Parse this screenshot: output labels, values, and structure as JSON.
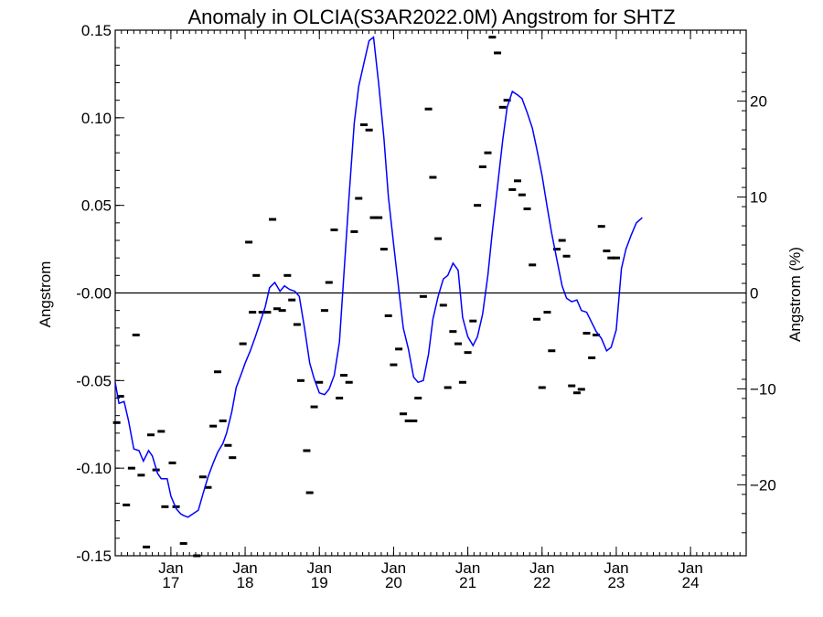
{
  "chart_data": {
    "type": "line",
    "title": "Anomaly in OLCIA(S3AR2022.0M) Angstrom for SHTZ",
    "ylabel": "Angstrom",
    "y2label": "Angstrom (%)",
    "xlabel": "",
    "xlim": [
      2016.25,
      2024.75
    ],
    "ylim": [
      -0.15,
      0.15
    ],
    "y2lim": [
      -27.4,
      27.4
    ],
    "yticks": [
      {
        "value": 0.15,
        "label": "0.15"
      },
      {
        "value": 0.1,
        "label": "0.10"
      },
      {
        "value": 0.05,
        "label": "0.05"
      },
      {
        "value": 0.0,
        "label": "-0.00"
      },
      {
        "value": -0.05,
        "label": "-0.05"
      },
      {
        "value": -0.1,
        "label": "-0.10"
      },
      {
        "value": -0.15,
        "label": "-0.15"
      }
    ],
    "y2ticks": [
      {
        "value": 20,
        "label": "20"
      },
      {
        "value": 10,
        "label": "10"
      },
      {
        "value": 0,
        "label": "0"
      },
      {
        "value": -10,
        "label": "−10"
      },
      {
        "value": -20,
        "label": "−20"
      }
    ],
    "xticks": [
      {
        "value": 2017,
        "month": "Jan",
        "year": "17"
      },
      {
        "value": 2018,
        "month": "Jan",
        "year": "18"
      },
      {
        "value": 2019,
        "month": "Jan",
        "year": "19"
      },
      {
        "value": 2020,
        "month": "Jan",
        "year": "20"
      },
      {
        "value": 2021,
        "month": "Jan",
        "year": "21"
      },
      {
        "value": 2022,
        "month": "Jan",
        "year": "22"
      },
      {
        "value": 2023,
        "month": "Jan",
        "year": "23"
      },
      {
        "value": 2024,
        "month": "Jan",
        "year": "24"
      }
    ],
    "zero_line": 0.0,
    "grid": false,
    "colors": {
      "smoothed": "#0000ff",
      "monthly": "#000000",
      "axes": "#000000"
    },
    "series": [
      {
        "style": "line",
        "points": [
          [
            2016.25,
            -0.051
          ],
          [
            2016.3,
            -0.063
          ],
          [
            2016.37,
            -0.062
          ],
          [
            2016.43,
            -0.073
          ],
          [
            2016.5,
            -0.089
          ],
          [
            2016.57,
            -0.09
          ],
          [
            2016.63,
            -0.096
          ],
          [
            2016.7,
            -0.09
          ],
          [
            2016.75,
            -0.093
          ],
          [
            2016.82,
            -0.103
          ],
          [
            2016.87,
            -0.106
          ],
          [
            2016.95,
            -0.106
          ],
          [
            2017.0,
            -0.116
          ],
          [
            2017.07,
            -0.123
          ],
          [
            2017.13,
            -0.126
          ],
          [
            2017.17,
            -0.127
          ],
          [
            2017.23,
            -0.128
          ],
          [
            2017.3,
            -0.126
          ],
          [
            2017.37,
            -0.124
          ],
          [
            2017.43,
            -0.115
          ],
          [
            2017.5,
            -0.105
          ],
          [
            2017.57,
            -0.097
          ],
          [
            2017.63,
            -0.091
          ],
          [
            2017.7,
            -0.086
          ],
          [
            2017.75,
            -0.08
          ],
          [
            2017.82,
            -0.068
          ],
          [
            2017.88,
            -0.054
          ],
          [
            2017.95,
            -0.046
          ],
          [
            2018.0,
            -0.04
          ],
          [
            2018.07,
            -0.033
          ],
          [
            2018.13,
            -0.026
          ],
          [
            2018.2,
            -0.017
          ],
          [
            2018.27,
            -0.008
          ],
          [
            2018.33,
            0.003
          ],
          [
            2018.4,
            0.006
          ],
          [
            2018.47,
            0.001
          ],
          [
            2018.53,
            0.004
          ],
          [
            2018.6,
            0.002
          ],
          [
            2018.67,
            0.001
          ],
          [
            2018.73,
            -0.002
          ],
          [
            2018.8,
            -0.02
          ],
          [
            2018.87,
            -0.04
          ],
          [
            2018.93,
            -0.049
          ],
          [
            2019.0,
            -0.057
          ],
          [
            2019.07,
            -0.058
          ],
          [
            2019.13,
            -0.055
          ],
          [
            2019.2,
            -0.047
          ],
          [
            2019.27,
            -0.028
          ],
          [
            2019.33,
            0.01
          ],
          [
            2019.4,
            0.055
          ],
          [
            2019.47,
            0.097
          ],
          [
            2019.53,
            0.118
          ],
          [
            2019.6,
            0.131
          ],
          [
            2019.67,
            0.144
          ],
          [
            2019.73,
            0.146
          ],
          [
            2019.8,
            0.119
          ],
          [
            2019.87,
            0.088
          ],
          [
            2019.93,
            0.055
          ],
          [
            2020.0,
            0.028
          ],
          [
            2020.07,
            0.002
          ],
          [
            2020.13,
            -0.02
          ],
          [
            2020.2,
            -0.032
          ],
          [
            2020.27,
            -0.048
          ],
          [
            2020.33,
            -0.051
          ],
          [
            2020.4,
            -0.05
          ],
          [
            2020.47,
            -0.035
          ],
          [
            2020.53,
            -0.015
          ],
          [
            2020.6,
            -0.002
          ],
          [
            2020.67,
            0.008
          ],
          [
            2020.73,
            0.01
          ],
          [
            2020.8,
            0.017
          ],
          [
            2020.87,
            0.013
          ],
          [
            2020.93,
            -0.014
          ],
          [
            2021.0,
            -0.025
          ],
          [
            2021.07,
            -0.03
          ],
          [
            2021.13,
            -0.025
          ],
          [
            2021.2,
            -0.012
          ],
          [
            2021.27,
            0.01
          ],
          [
            2021.33,
            0.035
          ],
          [
            2021.4,
            0.061
          ],
          [
            2021.47,
            0.087
          ],
          [
            2021.53,
            0.106
          ],
          [
            2021.6,
            0.115
          ],
          [
            2021.67,
            0.113
          ],
          [
            2021.73,
            0.111
          ],
          [
            2021.8,
            0.103
          ],
          [
            2021.87,
            0.094
          ],
          [
            2021.93,
            0.082
          ],
          [
            2022.0,
            0.067
          ],
          [
            2022.07,
            0.049
          ],
          [
            2022.13,
            0.034
          ],
          [
            2022.2,
            0.019
          ],
          [
            2022.27,
            0.004
          ],
          [
            2022.33,
            -0.003
          ],
          [
            2022.4,
            -0.005
          ],
          [
            2022.47,
            -0.004
          ],
          [
            2022.53,
            -0.01
          ],
          [
            2022.6,
            -0.011
          ],
          [
            2022.67,
            -0.017
          ],
          [
            2022.73,
            -0.022
          ],
          [
            2022.8,
            -0.026
          ],
          [
            2022.87,
            -0.033
          ],
          [
            2022.93,
            -0.031
          ],
          [
            2023.0,
            -0.021
          ],
          [
            2023.07,
            0.014
          ],
          [
            2023.13,
            0.025
          ],
          [
            2023.2,
            0.033
          ],
          [
            2023.27,
            0.04
          ],
          [
            2023.35,
            0.043
          ]
        ]
      },
      {
        "style": "dash",
        "points": [
          [
            2016.27,
            -0.074
          ],
          [
            2016.32,
            -0.059
          ],
          [
            2016.4,
            -0.121
          ],
          [
            2016.47,
            -0.1
          ],
          [
            2016.53,
            -0.024
          ],
          [
            2016.6,
            -0.104
          ],
          [
            2016.67,
            -0.145
          ],
          [
            2016.73,
            -0.081
          ],
          [
            2016.8,
            -0.101
          ],
          [
            2016.87,
            -0.079
          ],
          [
            2016.92,
            -0.122
          ],
          [
            2017.02,
            -0.097
          ],
          [
            2017.07,
            -0.122
          ],
          [
            2017.17,
            -0.143
          ],
          [
            2017.35,
            -0.15
          ],
          [
            2017.43,
            -0.105
          ],
          [
            2017.5,
            -0.111
          ],
          [
            2017.57,
            -0.076
          ],
          [
            2017.63,
            -0.045
          ],
          [
            2017.7,
            -0.073
          ],
          [
            2017.77,
            -0.087
          ],
          [
            2017.83,
            -0.094
          ],
          [
            2017.97,
            -0.029
          ],
          [
            2018.05,
            0.029
          ],
          [
            2018.1,
            -0.011
          ],
          [
            2018.15,
            0.01
          ],
          [
            2018.23,
            -0.011
          ],
          [
            2018.3,
            -0.011
          ],
          [
            2018.37,
            0.042
          ],
          [
            2018.43,
            -0.009
          ],
          [
            2018.5,
            -0.01
          ],
          [
            2018.57,
            0.01
          ],
          [
            2018.63,
            -0.004
          ],
          [
            2018.7,
            -0.018
          ],
          [
            2018.75,
            -0.05
          ],
          [
            2018.83,
            -0.09
          ],
          [
            2018.87,
            -0.114
          ],
          [
            2018.93,
            -0.065
          ],
          [
            2019.0,
            -0.051
          ],
          [
            2019.07,
            -0.01
          ],
          [
            2019.13,
            0.006
          ],
          [
            2019.2,
            0.036
          ],
          [
            2019.27,
            -0.06
          ],
          [
            2019.33,
            -0.047
          ],
          [
            2019.4,
            -0.051
          ],
          [
            2019.47,
            0.035
          ],
          [
            2019.53,
            0.054
          ],
          [
            2019.6,
            0.096
          ],
          [
            2019.67,
            0.093
          ],
          [
            2019.73,
            0.043
          ],
          [
            2019.8,
            0.043
          ],
          [
            2019.87,
            0.025
          ],
          [
            2019.93,
            -0.013
          ],
          [
            2020.0,
            -0.041
          ],
          [
            2020.07,
            -0.032
          ],
          [
            2020.13,
            -0.069
          ],
          [
            2020.2,
            -0.073
          ],
          [
            2020.27,
            -0.073
          ],
          [
            2020.33,
            -0.06
          ],
          [
            2020.4,
            -0.002
          ],
          [
            2020.47,
            0.105
          ],
          [
            2020.53,
            0.066
          ],
          [
            2020.6,
            0.031
          ],
          [
            2020.67,
            -0.007
          ],
          [
            2020.73,
            -0.054
          ],
          [
            2020.8,
            -0.022
          ],
          [
            2020.87,
            -0.029
          ],
          [
            2020.93,
            -0.051
          ],
          [
            2021.0,
            -0.034
          ],
          [
            2021.07,
            -0.016
          ],
          [
            2021.13,
            0.05
          ],
          [
            2021.2,
            0.072
          ],
          [
            2021.27,
            0.08
          ],
          [
            2021.33,
            0.146
          ],
          [
            2021.4,
            0.137
          ],
          [
            2021.47,
            0.106
          ],
          [
            2021.53,
            0.11
          ],
          [
            2021.6,
            0.059
          ],
          [
            2021.67,
            0.064
          ],
          [
            2021.73,
            0.056
          ],
          [
            2021.8,
            0.048
          ],
          [
            2021.87,
            0.016
          ],
          [
            2021.93,
            -0.015
          ],
          [
            2022.0,
            -0.054
          ],
          [
            2022.07,
            -0.011
          ],
          [
            2022.13,
            -0.033
          ],
          [
            2022.2,
            0.025
          ],
          [
            2022.27,
            0.03
          ],
          [
            2022.33,
            0.021
          ],
          [
            2022.4,
            -0.053
          ],
          [
            2022.47,
            -0.057
          ],
          [
            2022.53,
            -0.055
          ],
          [
            2022.6,
            -0.023
          ],
          [
            2022.67,
            -0.037
          ],
          [
            2022.73,
            -0.024
          ],
          [
            2022.8,
            0.038
          ],
          [
            2022.87,
            0.024
          ],
          [
            2022.93,
            0.02
          ],
          [
            2023.0,
            0.02
          ]
        ]
      }
    ]
  }
}
